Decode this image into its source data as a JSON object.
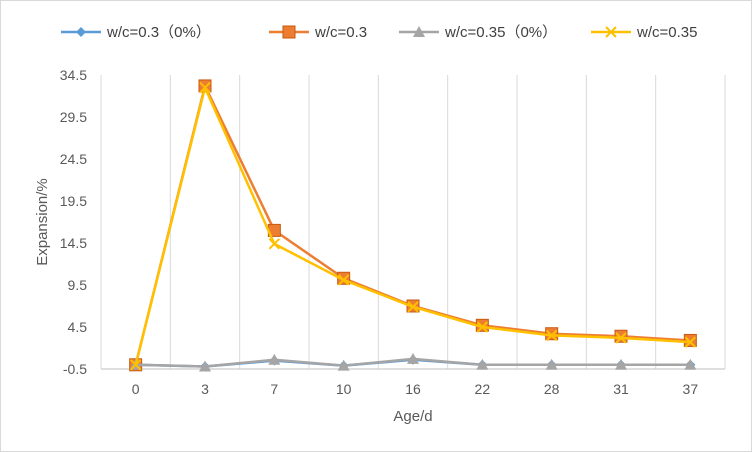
{
  "chart_data": {
    "type": "line",
    "title": "",
    "xlabel": "Age/d",
    "ylabel": "Expansion/%",
    "categories": [
      "0",
      "3",
      "7",
      "10",
      "16",
      "22",
      "28",
      "31",
      "37"
    ],
    "yticks": [
      "-0.5",
      "4.5",
      "9.5",
      "14.5",
      "19.5",
      "24.5",
      "29.5",
      "34.5"
    ],
    "ylim": [
      -0.5,
      34.5
    ],
    "grid": "vertical",
    "legend_position": "top",
    "series": [
      {
        "name": "w/c=0.3（0%）",
        "color": "#5b9bd5",
        "marker": "diamond",
        "values": [
          0,
          -0.2,
          0.5,
          -0.1,
          0.6,
          0,
          0,
          0,
          0
        ]
      },
      {
        "name": "w/c=0.3",
        "color": "#ed7d31",
        "marker": "square",
        "values": [
          0,
          33.2,
          16.0,
          10.3,
          7.0,
          4.7,
          3.7,
          3.4,
          2.9
        ]
      },
      {
        "name": "w/c=0.35（0%）",
        "color": "#a5a5a5",
        "marker": "triangle",
        "values": [
          0,
          -0.2,
          0.6,
          -0.1,
          0.7,
          0,
          0,
          0,
          0
        ]
      },
      {
        "name": "w/c=0.35",
        "color": "#ffc000",
        "marker": "x",
        "values": [
          0,
          33.0,
          14.4,
          10.1,
          6.9,
          4.5,
          3.5,
          3.2,
          2.7
        ]
      }
    ]
  }
}
